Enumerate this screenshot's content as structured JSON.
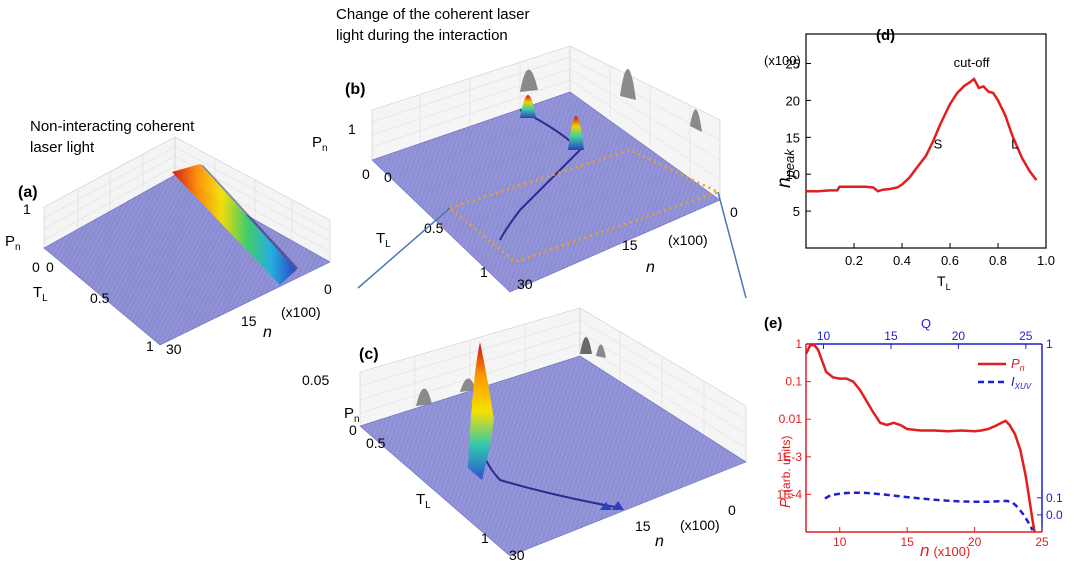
{
  "captions": {
    "top_line1": "Change of the coherent laser",
    "top_line2": "light during the interaction",
    "left_line1": "Non-interacting coherent",
    "left_line2": "laser light"
  },
  "panels": {
    "a": "(a)",
    "b": "(b)",
    "c": "(c)",
    "d": "(d)",
    "e": "(e)"
  },
  "surface_panels": {
    "a": {
      "z_label": "P",
      "z_sub": "n",
      "y_label": "T",
      "y_sub": "L",
      "x_label": "n",
      "x_mult": "(x100)",
      "z_ticks": [
        "1",
        "0"
      ],
      "y_ticks": [
        "0",
        "0.5",
        "1"
      ],
      "x_ticks": [
        "0",
        "15",
        "30"
      ]
    },
    "b": {
      "z_label": "P",
      "z_sub": "n",
      "y_label": "T",
      "y_sub": "L",
      "x_label": "n",
      "x_mult": "(x100)",
      "z_ticks": [
        "1",
        "0"
      ],
      "y_ticks": [
        "0",
        "0.5",
        "1"
      ],
      "x_ticks": [
        "0",
        "15",
        "30"
      ]
    },
    "c": {
      "z_label": "P",
      "z_sub": "n",
      "y_label": "T",
      "y_sub": "L",
      "x_label": "n",
      "x_mult": "(x100)",
      "z_ticks": [
        "0.05",
        "0"
      ],
      "y_ticks": [
        "0.5",
        "1"
      ],
      "x_ticks": [
        "0",
        "15",
        "30"
      ]
    }
  },
  "colors": {
    "surface": "#8e8fd4",
    "mesh": "#6d6fc0",
    "grid": "#c8c8c8",
    "red": "#e21f1f",
    "blue": "#1f1fcf",
    "orange": "#f0a020",
    "link": "#4a78b8"
  },
  "chart_data": [
    {
      "type": "line",
      "panel": "(d)",
      "ylabel": "n",
      "ylabel_sub": "peak",
      "y_multiplier": "(x100)",
      "xlabel": "T",
      "xlabel_sub": "L",
      "xlim": [
        0.0,
        1.0
      ],
      "ylim": [
        0,
        29
      ],
      "x_ticks": [
        "0.2",
        "0.4",
        "0.6",
        "0.8",
        "1.0"
      ],
      "y_ticks": [
        "5",
        "10",
        "15",
        "20",
        "25"
      ],
      "annotations": [
        {
          "text": "cut-off",
          "x": 0.69,
          "y": 24.5
        },
        {
          "text": "S",
          "x": 0.55,
          "y": 13.5
        },
        {
          "text": "L",
          "x": 0.87,
          "y": 13.5
        }
      ],
      "series": [
        {
          "x": [
            0.0,
            0.05,
            0.1,
            0.13,
            0.14,
            0.2,
            0.25,
            0.28,
            0.3,
            0.32,
            0.35,
            0.38,
            0.4,
            0.43,
            0.46,
            0.5,
            0.53,
            0.56,
            0.6,
            0.63,
            0.66,
            0.68,
            0.7,
            0.71,
            0.72,
            0.74,
            0.76,
            0.78,
            0.8,
            0.83,
            0.86,
            0.9,
            0.93,
            0.96
          ],
          "y": [
            7.7,
            7.7,
            7.8,
            7.8,
            8.3,
            8.3,
            8.3,
            8.2,
            7.7,
            7.9,
            8.0,
            8.2,
            8.6,
            9.5,
            10.8,
            12.5,
            14.5,
            16.8,
            19.5,
            21.0,
            22.0,
            22.4,
            22.9,
            22.3,
            21.7,
            21.9,
            21.2,
            21.0,
            20.0,
            18.0,
            15.2,
            12.2,
            10.5,
            9.2
          ]
        }
      ]
    },
    {
      "type": "line",
      "panel": "(e)",
      "xlabel": "n",
      "x_multiplier": "(x100)",
      "ylabel": "P",
      "ylabel_sub": "n",
      "ylabel_suffix": "(arb. units)",
      "top_xlabel": "Q",
      "xlim": [
        7.5,
        25
      ],
      "ylim_log": [
        1e-05,
        1
      ],
      "y2lim": [
        -0.1,
        1
      ],
      "x_ticks": [
        "10",
        "15",
        "20",
        "25"
      ],
      "top_x_ticks": [
        "10",
        "15",
        "20",
        "25"
      ],
      "y_ticks": [
        "1",
        "0.1",
        "0.01",
        "1E-3",
        "1E-4"
      ],
      "y2_ticks": [
        "1",
        "0.1",
        "0.0"
      ],
      "series": [
        {
          "name": "P",
          "name_sub": "n",
          "color": "#e21f1f",
          "style": "solid",
          "x": [
            7.5,
            7.8,
            8.1,
            8.4,
            8.7,
            9.0,
            9.5,
            10.0,
            10.5,
            11.0,
            11.5,
            12.0,
            12.5,
            13.0,
            13.5,
            14.0,
            14.5,
            15.0,
            16.0,
            17.0,
            18.0,
            19.0,
            20.0,
            20.5,
            21.0,
            21.5,
            22.0,
            22.3,
            22.6,
            23.0,
            23.4,
            23.8,
            24.1,
            24.3,
            24.45
          ],
          "y": [
            0.55,
            0.9,
            0.95,
            0.7,
            0.35,
            0.18,
            0.13,
            0.12,
            0.12,
            0.1,
            0.06,
            0.03,
            0.015,
            0.008,
            0.007,
            0.008,
            0.007,
            0.0055,
            0.005,
            0.005,
            0.0048,
            0.005,
            0.0048,
            0.005,
            0.0055,
            0.0065,
            0.008,
            0.009,
            0.007,
            0.004,
            0.0015,
            0.0003,
            6e-05,
            2e-05,
            1e-05
          ]
        },
        {
          "name": "I",
          "name_sub": "XUV",
          "color": "#1f1fcf",
          "style": "dashed",
          "x": [
            8.9,
            9.3,
            9.8,
            10.5,
            11.2,
            12.0,
            13.0,
            14.0,
            15.0,
            16.0,
            17.0,
            18.0,
            19.0,
            20.0,
            21.0,
            21.8,
            22.4,
            22.8,
            23.2,
            23.6,
            24.0,
            24.3
          ],
          "y": [
            0.096,
            0.114,
            0.122,
            0.128,
            0.13,
            0.128,
            0.122,
            0.113,
            0.104,
            0.096,
            0.089,
            0.083,
            0.079,
            0.077,
            0.077,
            0.08,
            0.082,
            0.074,
            0.045,
            0.005,
            -0.045,
            -0.09
          ]
        }
      ]
    }
  ]
}
